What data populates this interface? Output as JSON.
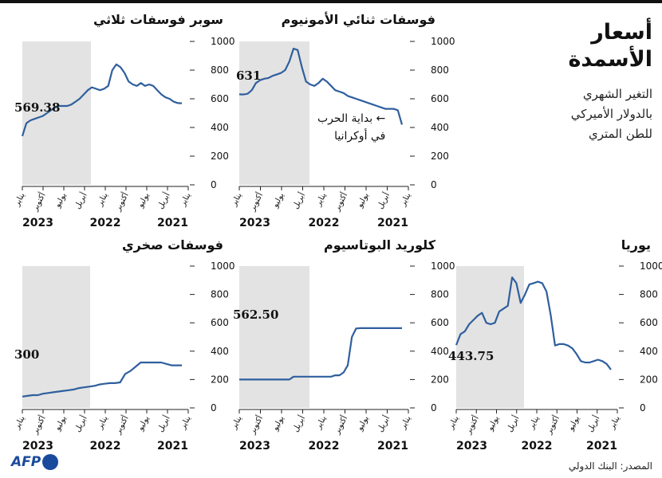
{
  "header": {
    "title_line1": "أسعار",
    "title_line2": "الأسمدة",
    "subtitle_line1": "التغير الشهري",
    "subtitle_line2": "بالدولار الأميركي",
    "subtitle_line3": "للطن المتري"
  },
  "annotation": {
    "war_line1": "بداية الحرب",
    "war_line2": "في أوكرانيا"
  },
  "source": "المصدر: البنك الدولي",
  "logo": "AFP",
  "colors": {
    "line": "#2f5f9e",
    "shade": "#e3e3e3",
    "axis": "#222222"
  },
  "chart_data": [
    {
      "type": "line",
      "title": "فوسفات ثنائي الأمونيوم",
      "ylim": [
        0,
        1000
      ],
      "yticks": [
        "0",
        "200",
        "400",
        "600",
        "800",
        "1000"
      ],
      "x_tick_labels": [
        "يناير",
        "أبريل",
        "يوليو",
        "أكتوبر",
        "يناير",
        "أبريل",
        "يوليو",
        "أكتوبر",
        "يناير"
      ],
      "year_labels": [
        "2021",
        "2022",
        "2023"
      ],
      "start_value_label": "631",
      "shaded": "from war start (Feb 2022) to end",
      "series": [
        {
          "values": [
            631,
            630,
            635,
            660,
            710,
            730,
            740,
            745,
            760,
            770,
            780,
            800,
            860,
            950,
            940,
            820,
            720,
            700,
            690,
            710,
            740,
            720,
            690,
            660,
            650,
            640,
            620,
            610,
            600,
            590,
            580,
            570,
            560,
            550,
            540,
            530,
            530,
            530,
            520,
            420
          ]
        }
      ]
    },
    {
      "type": "line",
      "title": "سوبر فوسفات ثلاثي",
      "ylim": [
        0,
        1000
      ],
      "yticks": [
        "0",
        "200",
        "400",
        "600",
        "800",
        "1000"
      ],
      "x_tick_labels": [
        "يناير",
        "أبريل",
        "يوليو",
        "أكتوبر",
        "يناير",
        "أبريل",
        "يوليو",
        "أكتوبر",
        "يناير"
      ],
      "year_labels": [
        "2021",
        "2022",
        "2023"
      ],
      "start_value_label": "569.38",
      "shaded": "from war start (Feb 2022) to end",
      "series": [
        {
          "values": [
            340,
            430,
            450,
            460,
            470,
            480,
            500,
            520,
            540,
            550,
            550,
            550,
            560,
            580,
            600,
            630,
            660,
            680,
            670,
            660,
            670,
            690,
            800,
            840,
            820,
            780,
            720,
            700,
            690,
            710,
            690,
            700,
            690,
            660,
            630,
            610,
            600,
            580,
            570,
            569
          ]
        }
      ]
    },
    {
      "type": "line",
      "title": "يوريا",
      "ylim": [
        0,
        1000
      ],
      "yticks": [
        "0",
        "200",
        "400",
        "600",
        "800",
        "1000"
      ],
      "x_tick_labels": [
        "يناير",
        "أبريل",
        "يوليو",
        "أكتوبر",
        "يناير",
        "أبريل",
        "يوليو",
        "أكتوبر",
        "يناير"
      ],
      "year_labels": [
        "2021",
        "2022",
        "2023"
      ],
      "start_value_label": "443.75",
      "shaded": "from war start (Feb 2022) to end",
      "series": [
        {
          "values": [
            443,
            520,
            540,
            590,
            620,
            650,
            670,
            600,
            590,
            600,
            680,
            700,
            720,
            920,
            880,
            740,
            800,
            870,
            880,
            890,
            880,
            820,
            650,
            440,
            450,
            450,
            440,
            420,
            380,
            330,
            320,
            320,
            330,
            340,
            330,
            310,
            270
          ]
        }
      ]
    },
    {
      "type": "line",
      "title": "كلوريد البوتاسيوم",
      "ylim": [
        0,
        1000
      ],
      "yticks": [
        "0",
        "200",
        "400",
        "600",
        "800",
        "1000"
      ],
      "x_tick_labels": [
        "يناير",
        "أبريل",
        "يوليو",
        "أكتوبر",
        "يناير",
        "أبريل",
        "يوليو",
        "أكتوبر",
        "يناير"
      ],
      "year_labels": [
        "2021",
        "2022",
        "2023"
      ],
      "start_value_label": "562.50",
      "shaded": "from war start (Feb 2022) to end",
      "series": [
        {
          "values": [
            200,
            200,
            200,
            200,
            200,
            200,
            200,
            200,
            200,
            200,
            200,
            200,
            200,
            220,
            220,
            220,
            220,
            220,
            220,
            220,
            220,
            220,
            220,
            230,
            230,
            250,
            300,
            500,
            560,
            562.5,
            562.5,
            562.5,
            562.5,
            562.5,
            562.5,
            562.5,
            562.5,
            562.5,
            562.5,
            562.5
          ]
        }
      ]
    },
    {
      "type": "line",
      "title": "فوسفات صخري",
      "ylim": [
        0,
        1000
      ],
      "yticks": [
        "0",
        "200",
        "400",
        "600",
        "800",
        "1000"
      ],
      "x_tick_labels": [
        "يناير",
        "أبريل",
        "يوليو",
        "أكتوبر",
        "يناير",
        "أبريل",
        "يوليو",
        "أكتوبر",
        "يناير"
      ],
      "year_labels": [
        "2021",
        "2022",
        "2023"
      ],
      "start_value_label": "300",
      "shaded": "from war start (Feb 2022) to end",
      "series": [
        {
          "values": [
            80,
            85,
            90,
            90,
            100,
            105,
            110,
            115,
            120,
            125,
            130,
            140,
            145,
            150,
            155,
            165,
            170,
            175,
            175,
            180,
            240,
            260,
            290,
            320,
            320,
            320,
            320,
            320,
            310,
            300,
            300,
            300
          ]
        }
      ]
    }
  ]
}
